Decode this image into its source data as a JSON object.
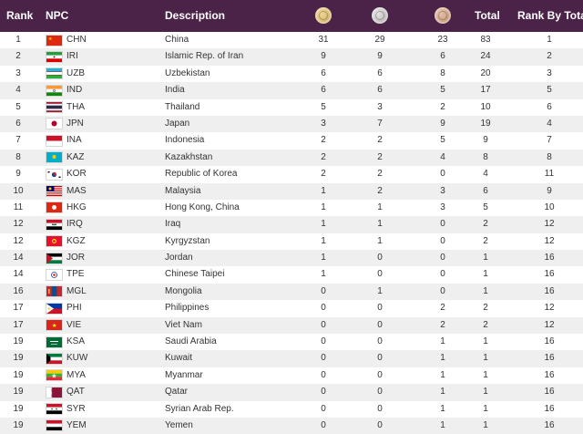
{
  "headers": {
    "rank": "Rank",
    "npc": "NPC",
    "description": "Description",
    "gold_icon": "gold-medal-icon",
    "silver_icon": "silver-medal-icon",
    "bronze_icon": "bronze-medal-icon",
    "total": "Total",
    "rank_by_total": "Rank By Total"
  },
  "colors": {
    "header_bg": "#4b2248",
    "header_text": "#ffffff",
    "row_alt": "#efefef",
    "gold": "#c9a45a",
    "silver": "#a8a8a8",
    "bronze": "#b98a6b"
  },
  "rows": [
    {
      "rank": "1",
      "npc": "CHN",
      "description": "China",
      "gold": "31",
      "silver": "29",
      "bronze": "23",
      "total": "83",
      "rank_by_total": "1",
      "flag": "china-flag"
    },
    {
      "rank": "2",
      "npc": "IRI",
      "description": "Islamic Rep. of Iran",
      "gold": "9",
      "silver": "9",
      "bronze": "6",
      "total": "24",
      "rank_by_total": "2",
      "flag": "iran-flag"
    },
    {
      "rank": "3",
      "npc": "UZB",
      "description": "Uzbekistan",
      "gold": "6",
      "silver": "6",
      "bronze": "8",
      "total": "20",
      "rank_by_total": "3",
      "flag": "uzbekistan-flag"
    },
    {
      "rank": "4",
      "npc": "IND",
      "description": "India",
      "gold": "6",
      "silver": "6",
      "bronze": "5",
      "total": "17",
      "rank_by_total": "5",
      "flag": "india-flag"
    },
    {
      "rank": "5",
      "npc": "THA",
      "description": "Thailand",
      "gold": "5",
      "silver": "3",
      "bronze": "2",
      "total": "10",
      "rank_by_total": "6",
      "flag": "thailand-flag"
    },
    {
      "rank": "6",
      "npc": "JPN",
      "description": "Japan",
      "gold": "3",
      "silver": "7",
      "bronze": "9",
      "total": "19",
      "rank_by_total": "4",
      "flag": "japan-flag"
    },
    {
      "rank": "7",
      "npc": "INA",
      "description": "Indonesia",
      "gold": "2",
      "silver": "2",
      "bronze": "5",
      "total": "9",
      "rank_by_total": "7",
      "flag": "indonesia-flag"
    },
    {
      "rank": "8",
      "npc": "KAZ",
      "description": "Kazakhstan",
      "gold": "2",
      "silver": "2",
      "bronze": "4",
      "total": "8",
      "rank_by_total": "8",
      "flag": "kazakhstan-flag"
    },
    {
      "rank": "9",
      "npc": "KOR",
      "description": "Republic of Korea",
      "gold": "2",
      "silver": "2",
      "bronze": "0",
      "total": "4",
      "rank_by_total": "11",
      "flag": "korea-flag"
    },
    {
      "rank": "10",
      "npc": "MAS",
      "description": "Malaysia",
      "gold": "1",
      "silver": "2",
      "bronze": "3",
      "total": "6",
      "rank_by_total": "9",
      "flag": "malaysia-flag"
    },
    {
      "rank": "11",
      "npc": "HKG",
      "description": "Hong Kong, China",
      "gold": "1",
      "silver": "1",
      "bronze": "3",
      "total": "5",
      "rank_by_total": "10",
      "flag": "hong-kong-flag"
    },
    {
      "rank": "12",
      "npc": "IRQ",
      "description": "Iraq",
      "gold": "1",
      "silver": "1",
      "bronze": "0",
      "total": "2",
      "rank_by_total": "12",
      "flag": "iraq-flag"
    },
    {
      "rank": "12",
      "npc": "KGZ",
      "description": "Kyrgyzstan",
      "gold": "1",
      "silver": "1",
      "bronze": "0",
      "total": "2",
      "rank_by_total": "12",
      "flag": "kyrgyzstan-flag"
    },
    {
      "rank": "14",
      "npc": "JOR",
      "description": "Jordan",
      "gold": "1",
      "silver": "0",
      "bronze": "0",
      "total": "1",
      "rank_by_total": "16",
      "flag": "jordan-flag"
    },
    {
      "rank": "14",
      "npc": "TPE",
      "description": "Chinese Taipei",
      "gold": "1",
      "silver": "0",
      "bronze": "0",
      "total": "1",
      "rank_by_total": "16",
      "flag": "chinese-taipei-flag"
    },
    {
      "rank": "16",
      "npc": "MGL",
      "description": "Mongolia",
      "gold": "0",
      "silver": "1",
      "bronze": "0",
      "total": "1",
      "rank_by_total": "16",
      "flag": "mongolia-flag"
    },
    {
      "rank": "17",
      "npc": "PHI",
      "description": "Philippines",
      "gold": "0",
      "silver": "0",
      "bronze": "2",
      "total": "2",
      "rank_by_total": "12",
      "flag": "philippines-flag"
    },
    {
      "rank": "17",
      "npc": "VIE",
      "description": "Viet Nam",
      "gold": "0",
      "silver": "0",
      "bronze": "2",
      "total": "2",
      "rank_by_total": "12",
      "flag": "vietnam-flag"
    },
    {
      "rank": "19",
      "npc": "KSA",
      "description": "Saudi Arabia",
      "gold": "0",
      "silver": "0",
      "bronze": "1",
      "total": "1",
      "rank_by_total": "16",
      "flag": "saudi-arabia-flag"
    },
    {
      "rank": "19",
      "npc": "KUW",
      "description": "Kuwait",
      "gold": "0",
      "silver": "0",
      "bronze": "1",
      "total": "1",
      "rank_by_total": "16",
      "flag": "kuwait-flag"
    },
    {
      "rank": "19",
      "npc": "MYA",
      "description": "Myanmar",
      "gold": "0",
      "silver": "0",
      "bronze": "1",
      "total": "1",
      "rank_by_total": "16",
      "flag": "myanmar-flag"
    },
    {
      "rank": "19",
      "npc": "QAT",
      "description": "Qatar",
      "gold": "0",
      "silver": "0",
      "bronze": "1",
      "total": "1",
      "rank_by_total": "16",
      "flag": "qatar-flag"
    },
    {
      "rank": "19",
      "npc": "SYR",
      "description": "Syrian Arab Rep.",
      "gold": "0",
      "silver": "0",
      "bronze": "1",
      "total": "1",
      "rank_by_total": "16",
      "flag": "syria-flag"
    },
    {
      "rank": "19",
      "npc": "YEM",
      "description": "Yemen",
      "gold": "0",
      "silver": "0",
      "bronze": "1",
      "total": "1",
      "rank_by_total": "16",
      "flag": "yemen-flag"
    }
  ]
}
